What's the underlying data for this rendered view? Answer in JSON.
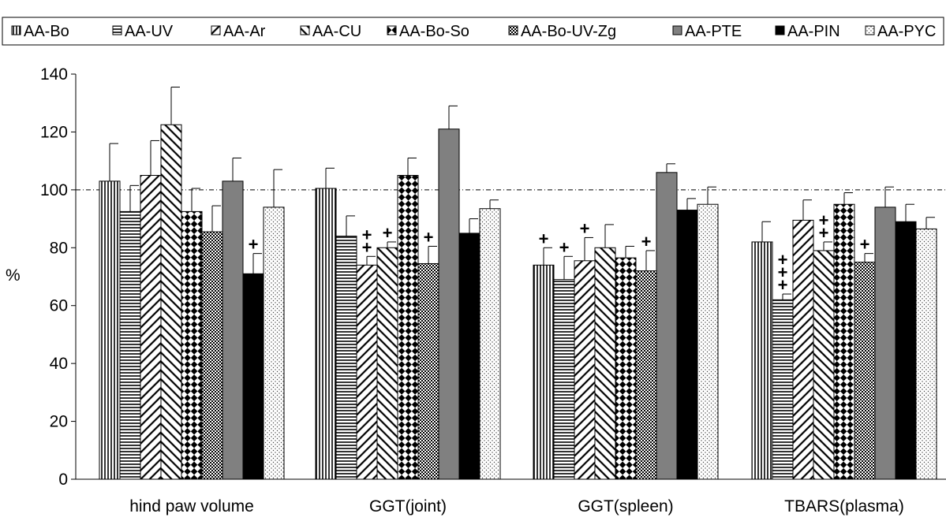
{
  "chart_data": {
    "type": "bar",
    "ylabel": "%",
    "ylim": [
      0,
      140
    ],
    "yticks": [
      0,
      20,
      40,
      60,
      80,
      100,
      120,
      140
    ],
    "reference_line": 100,
    "grid": false,
    "legend_position": "top",
    "categories": [
      "hind paw volume",
      "GGT(joint)",
      "GGT(spleen)",
      "TBARS(plasma)"
    ],
    "series": [
      {
        "name": "AA-Bo",
        "pattern": "vlines",
        "values": [
          103,
          100.5,
          74,
          82
        ],
        "errors": [
          13,
          7,
          6,
          7
        ],
        "sig": [
          "",
          "",
          "+",
          ""
        ]
      },
      {
        "name": "AA-UV",
        "pattern": "hlines",
        "values": [
          92.5,
          84,
          69,
          62
        ],
        "errors": [
          9,
          7,
          8,
          2
        ],
        "sig": [
          "",
          "",
          "+",
          "+\n+\n+"
        ]
      },
      {
        "name": "AA-Ar",
        "pattern": "diag-back",
        "values": [
          105,
          74,
          75.5,
          89.5
        ],
        "errors": [
          12,
          3,
          8,
          7
        ],
        "sig": [
          "",
          "+\n+",
          "+",
          ""
        ]
      },
      {
        "name": "AA-CU",
        "pattern": "diag-fwd",
        "values": [
          122.5,
          80,
          80,
          79
        ],
        "errors": [
          13,
          2,
          8,
          3
        ],
        "sig": [
          "",
          "+",
          "",
          "+\n+"
        ]
      },
      {
        "name": "AA-Bo-So",
        "pattern": "checker",
        "values": [
          92.5,
          105,
          76.5,
          95
        ],
        "errors": [
          8,
          6,
          4,
          4
        ],
        "sig": [
          "",
          "",
          "",
          ""
        ]
      },
      {
        "name": "AA-Bo-UV-Zg",
        "pattern": "fine-check",
        "values": [
          85.5,
          74.5,
          72,
          75
        ],
        "errors": [
          9,
          6,
          7,
          3
        ],
        "sig": [
          "",
          "+",
          "+",
          "+"
        ]
      },
      {
        "name": "AA-PTE",
        "pattern": "solid-gray",
        "values": [
          103,
          121,
          106,
          94
        ],
        "errors": [
          8,
          8,
          3,
          7
        ],
        "sig": [
          "",
          "",
          "",
          ""
        ]
      },
      {
        "name": "AA-PIN",
        "pattern": "solid-black",
        "values": [
          71,
          85,
          93,
          89
        ],
        "errors": [
          7,
          5,
          4,
          6
        ],
        "sig": [
          "+",
          "",
          "",
          ""
        ]
      },
      {
        "name": "AA-PYC",
        "pattern": "dots",
        "values": [
          94,
          93.5,
          95,
          86.5
        ],
        "errors": [
          13,
          3,
          6,
          4
        ],
        "sig": [
          "",
          "",
          "",
          ""
        ]
      }
    ]
  }
}
